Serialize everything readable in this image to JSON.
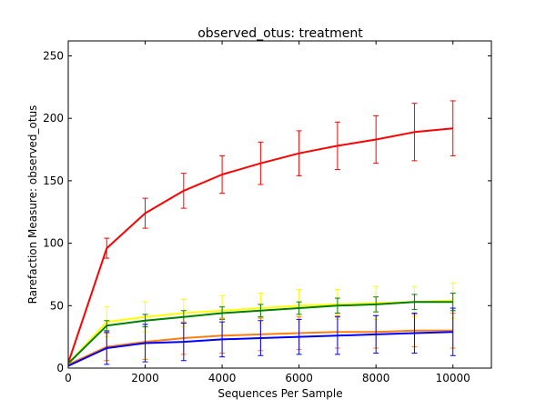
{
  "chart_data": {
    "type": "line",
    "title": "observed_otus: treatment",
    "xlabel": "Sequences Per Sample",
    "ylabel": "Rarefaction Measure: observed_otus",
    "xlim": [
      0,
      11000
    ],
    "ylim": [
      0,
      262
    ],
    "xticks": [
      0,
      2000,
      4000,
      6000,
      8000,
      10000
    ],
    "yticks": [
      0,
      50,
      100,
      150,
      200,
      250
    ],
    "grid": false,
    "x": [
      10,
      1000,
      2000,
      3000,
      4000,
      5000,
      6000,
      7000,
      8000,
      9000,
      10000
    ],
    "series": [
      {
        "color": "#ff0000",
        "values": [
          5,
          96,
          124,
          142,
          155,
          164,
          172,
          178,
          183,
          189,
          192
        ],
        "errors": [
          0,
          8,
          12,
          14,
          15,
          17,
          18,
          19,
          19,
          23,
          22
        ]
      },
      {
        "color": "#ffff00",
        "values": [
          4,
          37,
          41,
          44,
          46,
          48,
          50,
          51,
          52,
          53,
          54
        ],
        "errors": [
          0,
          12,
          12,
          11,
          12,
          12,
          13,
          12,
          13,
          12,
          14
        ]
      },
      {
        "color": "#008000",
        "values": [
          4,
          34,
          38,
          41,
          44,
          46,
          48,
          50,
          51,
          53,
          53
        ],
        "errors": [
          0,
          4,
          5,
          5,
          5,
          5,
          5,
          6,
          6,
          6,
          7
        ]
      },
      {
        "color": "#ff7f0e",
        "values": [
          3,
          17,
          21,
          24,
          26,
          27,
          28,
          29,
          29,
          30,
          30
        ],
        "errors": [
          0,
          11,
          14,
          13,
          14,
          13,
          13,
          13,
          13,
          13,
          14
        ]
      },
      {
        "color": "#0000ff",
        "values": [
          2,
          16,
          20,
          21,
          23,
          24,
          25,
          26,
          27,
          28,
          29
        ],
        "errors": [
          0,
          13,
          15,
          15,
          14,
          14,
          14,
          15,
          15,
          16,
          19
        ]
      }
    ]
  }
}
